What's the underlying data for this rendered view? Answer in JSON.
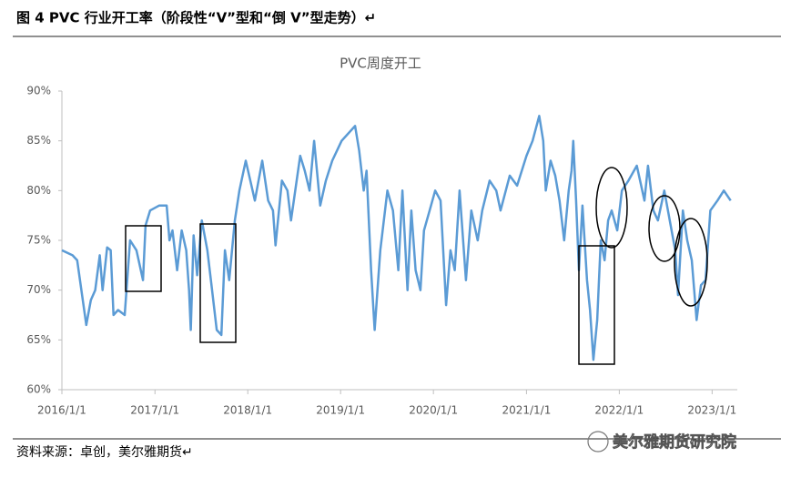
{
  "header": {
    "title": "图 4   PVC 行业开工率（阶段性“V”型和“倒 V”型走势）↵"
  },
  "chart_data": {
    "type": "line",
    "title": "PVC周度开工",
    "color": "#5b9bd5",
    "x": [
      "2016/1/1",
      "2016/2/12",
      "2016/3/1",
      "2016/4/6",
      "2016/4/24",
      "2016/5/11",
      "2016/5/29",
      "2016/6/9",
      "2016/6/27",
      "2016/7/11",
      "2016/7/22",
      "2016/8/9",
      "2016/9/4",
      "2016/9/25",
      "2016/10/20",
      "2016/11/15",
      "2016/11/25",
      "2016/12/13",
      "2017/1/18",
      "2017/2/16",
      "2017/2/27",
      "2017/3/11",
      "2017/3/29",
      "2017/4/16",
      "2017/5/4",
      "2017/5/15",
      "2017/5/22",
      "2017/6/2",
      "2017/6/16",
      "2017/7/4",
      "2017/7/26",
      "2017/8/9",
      "2017/9/1",
      "2017/9/19",
      "2017/10/3",
      "2017/10/20",
      "2017/11/11",
      "2017/11/29",
      "2017/12/24",
      "2018/1/11",
      "2018/1/29",
      "2018/2/27",
      "2018/3/22",
      "2018/4/10",
      "2018/4/20",
      "2018/5/15",
      "2018/6/6",
      "2018/6/20",
      "2018/7/26",
      "2018/8/13",
      "2018/9/1",
      "2018/9/19",
      "2018/10/13",
      "2018/11/4",
      "2018/11/29",
      "2019/1/5",
      "2019/2/27",
      "2019/3/15",
      "2019/4/2",
      "2019/4/13",
      "2019/5/1",
      "2019/5/15",
      "2019/6/6",
      "2019/7/4",
      "2019/7/26",
      "2019/8/16",
      "2019/9/1",
      "2019/9/21",
      "2019/10/6",
      "2019/10/23",
      "2019/11/11",
      "2019/11/25",
      "2019/12/17",
      "2020/1/8",
      "2020/1/29",
      "2020/2/20",
      "2020/3/8",
      "2020/3/25",
      "2020/4/13",
      "2020/5/8",
      "2020/5/29",
      "2020/6/23",
      "2020/7/11",
      "2020/8/9",
      "2020/9/4",
      "2020/9/21",
      "2020/10/27",
      "2020/11/25",
      "2021/1/1",
      "2021/1/25",
      "2021/2/20",
      "2021/3/8",
      "2021/3/18",
      "2021/4/6",
      "2021/4/24",
      "2021/5/11",
      "2021/5/29",
      "2021/6/16",
      "2021/6/27",
      "2021/7/4",
      "2021/7/15",
      "2021/7/26",
      "2021/8/9",
      "2021/8/27",
      "2021/9/8",
      "2021/9/21",
      "2021/10/6",
      "2021/10/20",
      "2021/11/4",
      "2021/11/18",
      "2021/12/2",
      "2021/12/24",
      "2022/1/11",
      "2022/2/6",
      "2022/3/11",
      "2022/4/10",
      "2022/4/24",
      "2022/5/15",
      "2022/6/2",
      "2022/6/27",
      "2022/7/22",
      "2022/8/9",
      "2022/8/20",
      "2022/9/8",
      "2022/9/25",
      "2022/10/13",
      "2022/11/1",
      "2022/11/18",
      "2022/12/6",
      "2022/12/25",
      "2023/1/22",
      "2023/2/16",
      "2023/3/15"
    ],
    "values": [
      74,
      73.5,
      73,
      66.5,
      69,
      70,
      73.5,
      70,
      74.3,
      74,
      67.5,
      68,
      67.5,
      75,
      74,
      71,
      76.5,
      78,
      78.5,
      78.5,
      75,
      76,
      72,
      76,
      74,
      70,
      66,
      75.5,
      71.5,
      77,
      74,
      71,
      66,
      65.5,
      74,
      71,
      77,
      80,
      83,
      81,
      79,
      83,
      79,
      78,
      74.5,
      81,
      80,
      77,
      83.5,
      82,
      80,
      85,
      78.5,
      81,
      83,
      85,
      86.5,
      84,
      80,
      82,
      72,
      66,
      74,
      80,
      78,
      72,
      80,
      70,
      78,
      72,
      70,
      76,
      78,
      80,
      79,
      68.5,
      74,
      72,
      80,
      71,
      78,
      75,
      78,
      81,
      80,
      78,
      81.5,
      80.5,
      83.5,
      85,
      87.5,
      85,
      80,
      83,
      81.5,
      79,
      75,
      80,
      82,
      85,
      79,
      72,
      78.5,
      71,
      68,
      63,
      67,
      75,
      73,
      77,
      78,
      76,
      80,
      81,
      82.5,
      79,
      82.5,
      78,
      77,
      80,
      76.5,
      74,
      69.5,
      78,
      75,
      73,
      67,
      70.5,
      71,
      78,
      79,
      80,
      79
    ],
    "xlim": [
      "2016/1/1",
      "2023/4/10"
    ],
    "xticks": [
      "2016/1/1",
      "2017/1/1",
      "2018/1/1",
      "2019/1/1",
      "2020/1/1",
      "2021/1/1",
      "2022/1/1",
      "2023/1/1"
    ],
    "ylim": [
      60,
      90
    ],
    "yticks": [
      {
        "value": 60,
        "label": "60%"
      },
      {
        "value": 65,
        "label": "65%"
      },
      {
        "value": 70,
        "label": "70%"
      },
      {
        "value": 75,
        "label": "75%"
      },
      {
        "value": 80,
        "label": "80%"
      },
      {
        "value": 85,
        "label": "85%"
      },
      {
        "value": 90,
        "label": "90%"
      }
    ],
    "grid": false
  },
  "footer": {
    "source": "资料来源：卓创，美尔雅期货↵",
    "watermark": "美尔雅期货研究院"
  }
}
